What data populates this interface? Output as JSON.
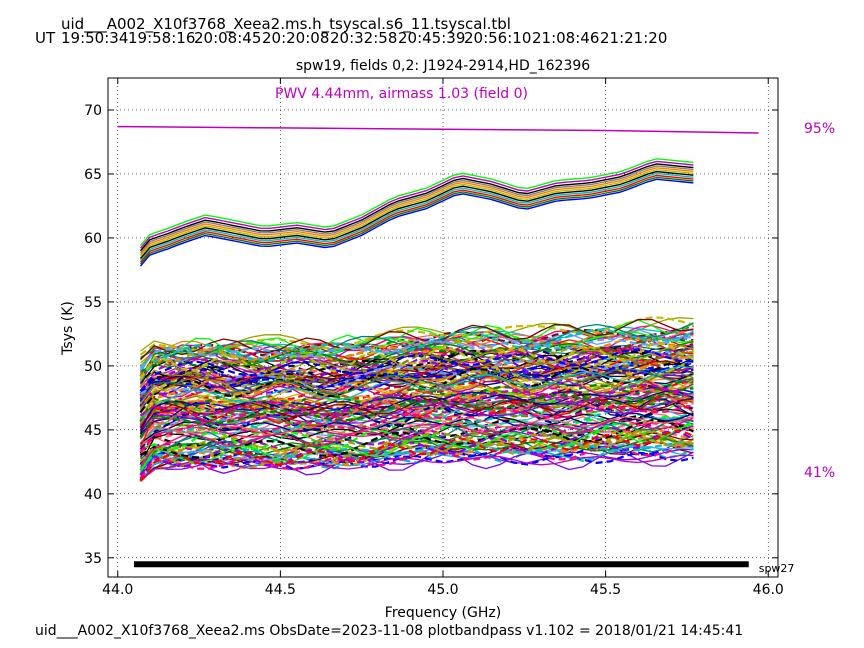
{
  "header": {
    "file_title": "uid___A002_X10f3768_Xeea2.ms.h_tsyscal.s6_11.tsyscal.tbl",
    "ut_label": "UT",
    "ut_times": [
      "19:50:34",
      "19:58:16",
      "20:08:45",
      "20:20:08",
      "20:32:58",
      "20:45:39",
      "20:56:10",
      "21:08:46",
      "21:21:20"
    ]
  },
  "footer": {
    "text": "uid___A002_X10f3768_Xeea2.ms  ObsDate=2023-11-08   plotbandpass v1.102 = 2018/01/21 14:45:41"
  },
  "chart_data": {
    "type": "line",
    "title": "spw19,  fields 0,2: J1924-2914,HD_162396",
    "annotation": "PWV 4.44mm, airmass 1.03 (field 0)",
    "xlabel": "Frequency (GHz)",
    "ylabel": "Tsys (K)",
    "xlim": [
      43.97,
      46.03
    ],
    "ylim": [
      33.5,
      72.5
    ],
    "xticks": [
      44.0,
      44.5,
      45.0,
      45.5,
      46.0
    ],
    "xtick_labels": [
      "44.0",
      "44.5",
      "45.0",
      "45.5",
      "46.0"
    ],
    "yticks": [
      35,
      40,
      45,
      50,
      55,
      60,
      65,
      70
    ],
    "ytick_labels": [
      "35",
      "40",
      "45",
      "50",
      "55",
      "60",
      "65",
      "70"
    ],
    "grid": true,
    "right_labels": {
      "top": "95%",
      "bottom": "41%"
    },
    "atm_color": "#c000c0",
    "atm_transmission": {
      "x": [
        44.0,
        44.5,
        45.0,
        45.5,
        45.97
      ],
      "y": [
        68.7,
        68.6,
        68.5,
        68.4,
        68.2
      ]
    },
    "spw_bar": {
      "x": [
        44.05,
        45.94
      ],
      "y": 34.5,
      "label": "spw27"
    },
    "high_group": {
      "x_range": [
        44.07,
        45.77
      ],
      "base_curve_x": [
        44.07,
        44.1,
        44.15,
        44.2,
        44.27,
        44.35,
        44.45,
        44.55,
        44.65,
        44.75,
        44.85,
        44.95,
        45.05,
        45.15,
        45.25,
        45.35,
        45.45,
        45.55,
        45.65,
        45.77
      ],
      "base_curve_y": [
        57.8,
        58.7,
        59.1,
        59.6,
        60.2,
        59.8,
        59.3,
        59.6,
        59.2,
        60.2,
        61.6,
        62.3,
        63.5,
        63.0,
        62.2,
        62.9,
        63.1,
        63.6,
        64.6,
        64.3
      ],
      "offsets": [
        0.0,
        0.15,
        0.3,
        0.45,
        0.6,
        0.75,
        0.9,
        1.05,
        1.2,
        1.4,
        1.6
      ]
    },
    "low_group": {
      "x_range": [
        44.07,
        45.77
      ],
      "approx_range": [
        41.0,
        54.4
      ],
      "description_of_series": "many solid and dashed Tsys spectra per antenna/polarization"
    },
    "series_colors": [
      "#0000ff",
      "#008000",
      "#ff0000",
      "#00bfbf",
      "#bf00bf",
      "#bfbf00",
      "#000000",
      "#ff8000",
      "#00ff00",
      "#8000ff",
      "#ff0080",
      "#808000",
      "#008080",
      "#800000",
      "#000080",
      "#ff6060",
      "#60a0ff",
      "#a0a000"
    ]
  }
}
